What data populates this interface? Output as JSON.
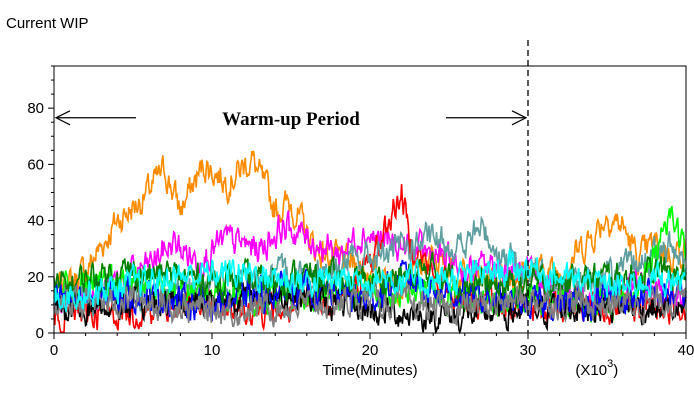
{
  "chart_data": {
    "type": "line",
    "title": "Current WIP",
    "xlabel": "Time(Minutes)",
    "x_multiplier_label": {
      "base": "(X10",
      "exponent": "3",
      "close": ")"
    },
    "xlim": [
      0,
      40
    ],
    "ylim": [
      0,
      95
    ],
    "x_ticks": [
      0,
      10,
      20,
      30,
      40
    ],
    "y_ticks": [
      0,
      20,
      40,
      60,
      80
    ],
    "grid": false,
    "annotation": {
      "text": "Warm-up Period",
      "x_start": 0,
      "x_end": 30,
      "y": 78
    },
    "vline": {
      "x": 30,
      "style": "dashed"
    },
    "series": [
      {
        "color": "#ff8c00",
        "keyframes": [
          [
            0,
            14
          ],
          [
            2,
            22
          ],
          [
            4,
            40
          ],
          [
            5.5,
            47
          ],
          [
            7,
            58
          ],
          [
            8,
            44
          ],
          [
            9.5,
            60
          ],
          [
            11,
            54
          ],
          [
            12.5,
            62
          ],
          [
            14,
            44
          ],
          [
            15,
            46
          ],
          [
            16.5,
            30
          ],
          [
            18,
            26
          ],
          [
            20,
            22
          ],
          [
            22,
            18
          ],
          [
            24,
            26
          ],
          [
            26,
            20
          ],
          [
            28,
            20
          ],
          [
            30,
            22
          ],
          [
            32,
            22
          ],
          [
            34,
            34
          ],
          [
            35,
            42
          ],
          [
            36,
            38
          ],
          [
            37,
            26
          ],
          [
            38,
            32
          ],
          [
            39,
            28
          ],
          [
            40,
            30
          ]
        ]
      },
      {
        "color": "#ff00ff",
        "keyframes": [
          [
            0,
            10
          ],
          [
            3,
            15
          ],
          [
            6,
            24
          ],
          [
            7.5,
            32
          ],
          [
            9,
            26
          ],
          [
            11,
            33
          ],
          [
            13,
            30
          ],
          [
            14.5,
            38
          ],
          [
            16,
            34
          ],
          [
            18,
            28
          ],
          [
            19.5,
            36
          ],
          [
            21,
            32
          ],
          [
            22.5,
            30
          ],
          [
            24,
            28
          ],
          [
            26,
            22
          ],
          [
            28,
            24
          ],
          [
            30,
            20
          ],
          [
            32,
            15
          ],
          [
            34,
            12
          ],
          [
            36,
            18
          ],
          [
            38,
            15
          ],
          [
            40,
            12
          ]
        ]
      },
      {
        "color": "#ff0000",
        "keyframes": [
          [
            0,
            6
          ],
          [
            5,
            8
          ],
          [
            10,
            10
          ],
          [
            15,
            8
          ],
          [
            19,
            15
          ],
          [
            20.5,
            30
          ],
          [
            21.5,
            44
          ],
          [
            22,
            50
          ],
          [
            22.5,
            34
          ],
          [
            24,
            20
          ],
          [
            26,
            12
          ],
          [
            30,
            10
          ],
          [
            35,
            8
          ],
          [
            40,
            10
          ]
        ]
      },
      {
        "color": "#5f9ea0",
        "keyframes": [
          [
            0,
            12
          ],
          [
            6,
            14
          ],
          [
            12,
            18
          ],
          [
            18,
            24
          ],
          [
            22,
            30
          ],
          [
            24,
            33
          ],
          [
            26,
            30
          ],
          [
            27,
            38
          ],
          [
            28,
            30
          ],
          [
            30,
            22
          ],
          [
            33,
            18
          ],
          [
            36,
            22
          ],
          [
            39,
            30
          ],
          [
            40,
            28
          ]
        ]
      },
      {
        "color": "#00ff00",
        "keyframes": [
          [
            0,
            16
          ],
          [
            5,
            18
          ],
          [
            10,
            14
          ],
          [
            15,
            12
          ],
          [
            20,
            16
          ],
          [
            25,
            14
          ],
          [
            30,
            12
          ],
          [
            34,
            10
          ],
          [
            37,
            14
          ],
          [
            39,
            44
          ],
          [
            40,
            28
          ]
        ]
      },
      {
        "color": "#000000",
        "keyframes": [
          [
            0,
            8
          ],
          [
            5,
            10
          ],
          [
            10,
            12
          ],
          [
            15,
            14
          ],
          [
            20,
            8
          ],
          [
            25,
            6
          ],
          [
            30,
            8
          ],
          [
            35,
            10
          ],
          [
            40,
            8
          ]
        ]
      },
      {
        "color": "#0000ff",
        "keyframes": [
          [
            0,
            12
          ],
          [
            5,
            14
          ],
          [
            10,
            10
          ],
          [
            15,
            16
          ],
          [
            20,
            12
          ],
          [
            22,
            20
          ],
          [
            25,
            14
          ],
          [
            30,
            10
          ],
          [
            35,
            12
          ],
          [
            40,
            14
          ]
        ]
      },
      {
        "color": "#008000",
        "keyframes": [
          [
            0,
            16
          ],
          [
            4,
            22
          ],
          [
            8,
            20
          ],
          [
            12,
            18
          ],
          [
            16,
            20
          ],
          [
            20,
            18
          ],
          [
            24,
            22
          ],
          [
            28,
            16
          ],
          [
            32,
            18
          ],
          [
            36,
            20
          ],
          [
            39,
            22
          ],
          [
            40,
            18
          ]
        ]
      },
      {
        "color": "#808080",
        "keyframes": [
          [
            0,
            10
          ],
          [
            5,
            12
          ],
          [
            10,
            8
          ],
          [
            15,
            10
          ],
          [
            20,
            12
          ],
          [
            25,
            8
          ],
          [
            30,
            12
          ],
          [
            35,
            10
          ],
          [
            40,
            12
          ]
        ]
      },
      {
        "color": "#00ffff",
        "keyframes": [
          [
            0,
            14
          ],
          [
            4,
            16
          ],
          [
            8,
            20
          ],
          [
            12,
            22
          ],
          [
            16,
            18
          ],
          [
            20,
            20
          ],
          [
            24,
            18
          ],
          [
            28,
            22
          ],
          [
            30,
            24
          ],
          [
            33,
            18
          ],
          [
            36,
            16
          ],
          [
            38,
            20
          ],
          [
            40,
            18
          ]
        ]
      }
    ]
  }
}
